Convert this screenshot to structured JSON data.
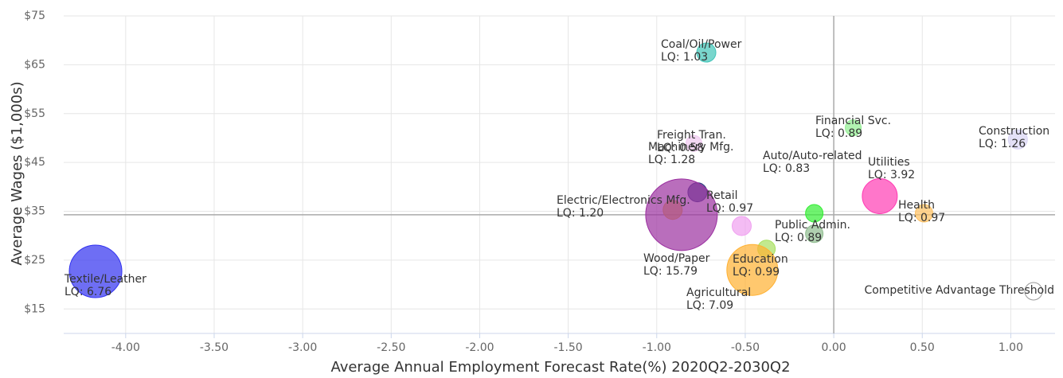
{
  "chart_data": {
    "type": "bubble",
    "x_axis_label": "Average Annual Employment Forecast Rate(%) 2020Q2-2030Q2",
    "y_axis_label": "Average Wages ($1,000s)",
    "threshold_label": "Competitive Advantage Threshold",
    "x_threshold": 0,
    "y_threshold": 34.3,
    "xlim": [
      -4.35,
      1.25
    ],
    "ylim": [
      10,
      75
    ],
    "xticks": [
      {
        "value": -4,
        "label": "-4.00"
      },
      {
        "value": -3.5,
        "label": "-3.50"
      },
      {
        "value": -3,
        "label": "-3.00"
      },
      {
        "value": -2.5,
        "label": "-2.50"
      },
      {
        "value": -2,
        "label": "-2.00"
      },
      {
        "value": -1.5,
        "label": "-1.50"
      },
      {
        "value": -1,
        "label": "-1.00"
      },
      {
        "value": -0.5,
        "label": "-0.50"
      },
      {
        "value": 0,
        "label": "0.00"
      },
      {
        "value": 0.5,
        "label": "0.50"
      },
      {
        "value": 1,
        "label": "1.00"
      }
    ],
    "yticks": [
      {
        "value": 15,
        "label": "$15"
      },
      {
        "value": 25,
        "label": "$25"
      },
      {
        "value": 35,
        "label": "$35"
      },
      {
        "value": 45,
        "label": "$45"
      },
      {
        "value": 55,
        "label": "$55"
      },
      {
        "value": 65,
        "label": "$65"
      },
      {
        "value": 75,
        "label": "$75"
      }
    ],
    "grid": true,
    "points": [
      {
        "name": "Coal/Oil/Power",
        "lq_label": "LQ: 1.03",
        "x": -0.72,
        "y": 67.5,
        "z": 144,
        "color": "#40c4b8"
      },
      {
        "name": "Financial Svc.",
        "lq_label": "LQ: 0.89",
        "x": 0.11,
        "y": 52.1,
        "z": 100,
        "color": "#90ee90"
      },
      {
        "name": "Construction",
        "lq_label": "LQ: 1.26",
        "x": 1.04,
        "y": 49.7,
        "z": 144,
        "color": "#d8d4f4"
      },
      {
        "name": "Freight Tran.",
        "lq_label": "LQ: 0.58",
        "x": -0.79,
        "y": 48.9,
        "z": 100,
        "color": "#f0c8f0"
      },
      {
        "name": "Machinery Mfg.",
        "lq_label": "LQ: 1.28",
        "x": -0.52,
        "y": 32.0,
        "z": 144,
        "color": "#f0a0f0"
      },
      {
        "name": "Auto/Auto-related",
        "lq_label": "LQ: 0.83",
        "x": -0.11,
        "y": 34.6,
        "z": 121,
        "color": "#33ee33"
      },
      {
        "name": "Public Admin.",
        "lq_label": "LQ: 0.89",
        "x": -0.11,
        "y": 30.4,
        "z": 121,
        "color": "#8fbc8f"
      },
      {
        "name": "Retail",
        "lq_label": "LQ: 0.97",
        "x": -0.77,
        "y": 38.9,
        "z": 144,
        "color": "#2f3a80"
      },
      {
        "name": "Electric/Electronics Mfg.",
        "lq_label": "LQ: 1.20",
        "x": -0.91,
        "y": 35.3,
        "z": 144,
        "color": "#f0c030"
      },
      {
        "name": "Wood/Paper",
        "lq_label": "LQ: 15.79",
        "x": -0.86,
        "y": 34.3,
        "z": 2025,
        "color": "#9b30a0"
      },
      {
        "name": "Utilities",
        "lq_label": "LQ: 3.92",
        "x": 0.26,
        "y": 38.1,
        "z": 484,
        "color": "#ff3cb4"
      },
      {
        "name": "Health",
        "lq_label": "LQ: 0.97",
        "x": 0.51,
        "y": 34.6,
        "z": 121,
        "color": "#ffc060"
      },
      {
        "name": "Agricultural",
        "lq_label": "LQ: 7.09",
        "x": -0.38,
        "y": 27.3,
        "z": 121,
        "color": "#a8e060"
      },
      {
        "name": "Education",
        "lq_label": "LQ: 0.99",
        "x": -0.46,
        "y": 23.0,
        "z": 1024,
        "color": "#ffb030"
      },
      {
        "name": "Textile/Leather",
        "lq_label": "LQ: 6.76",
        "x": -4.17,
        "y": 22.7,
        "z": 1089,
        "color": "#3030f0"
      }
    ]
  }
}
